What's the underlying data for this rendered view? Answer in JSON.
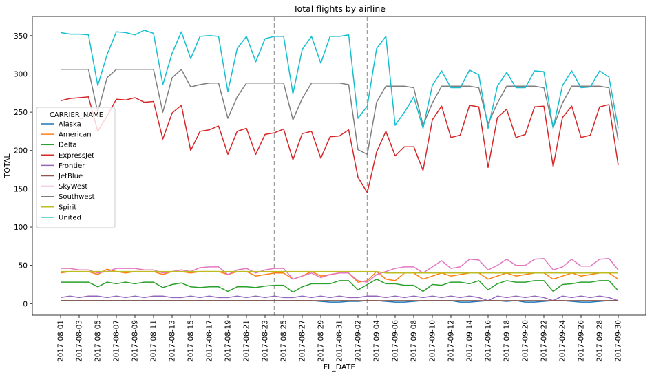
{
  "chart_data": {
    "type": "line",
    "title": "Total flights by airline",
    "xlabel": "FL_DATE",
    "ylabel": "TOTAL",
    "ylim": [
      -15,
      375
    ],
    "yticks": [
      0,
      50,
      100,
      150,
      200,
      250,
      300,
      350
    ],
    "grid": false,
    "legend": {
      "title": "CARRIER_NAME",
      "placement": "center-left"
    },
    "vlines": [
      "2017-08-24",
      "2017-09-03"
    ],
    "start_date": "2017-08-01",
    "categories": [
      "2017-08-01",
      "2017-08-02",
      "2017-08-03",
      "2017-08-04",
      "2017-08-05",
      "2017-08-06",
      "2017-08-07",
      "2017-08-08",
      "2017-08-09",
      "2017-08-10",
      "2017-08-11",
      "2017-08-12",
      "2017-08-13",
      "2017-08-14",
      "2017-08-15",
      "2017-08-16",
      "2017-08-17",
      "2017-08-18",
      "2017-08-19",
      "2017-08-20",
      "2017-08-21",
      "2017-08-22",
      "2017-08-23",
      "2017-08-24",
      "2017-08-25",
      "2017-08-26",
      "2017-08-27",
      "2017-08-28",
      "2017-08-29",
      "2017-08-30",
      "2017-08-31",
      "2017-09-01",
      "2017-09-02",
      "2017-09-03",
      "2017-09-04",
      "2017-09-05",
      "2017-09-06",
      "2017-09-07",
      "2017-09-08",
      "2017-09-09",
      "2017-09-10",
      "2017-09-11",
      "2017-09-12",
      "2017-09-13",
      "2017-09-14",
      "2017-09-15",
      "2017-09-16",
      "2017-09-17",
      "2017-09-18",
      "2017-09-19",
      "2017-09-20",
      "2017-09-21",
      "2017-09-22",
      "2017-09-23",
      "2017-09-24",
      "2017-09-25",
      "2017-09-26",
      "2017-09-27",
      "2017-09-28",
      "2017-09-29",
      "2017-09-30"
    ],
    "series": [
      {
        "name": "Alaska",
        "color": "#1f77b4",
        "values": [
          4,
          4,
          4,
          4,
          4,
          4,
          4,
          4,
          4,
          4,
          4,
          4,
          4,
          4,
          4,
          4,
          4,
          4,
          4,
          4,
          4,
          4,
          4,
          4,
          4,
          4,
          4,
          4,
          3,
          2,
          2,
          3,
          3,
          4,
          4,
          3,
          2,
          2,
          3,
          4,
          4,
          4,
          4,
          2,
          2,
          3,
          4,
          4,
          3,
          4,
          2,
          2,
          3,
          4,
          4,
          3,
          2,
          2,
          3,
          4,
          4
        ]
      },
      {
        "name": "American",
        "color": "#ff7f0e",
        "values": [
          40,
          42,
          42,
          42,
          38,
          45,
          42,
          40,
          42,
          42,
          42,
          38,
          42,
          42,
          40,
          42,
          42,
          42,
          38,
          42,
          42,
          36,
          38,
          40,
          40,
          32,
          36,
          42,
          36,
          38,
          40,
          40,
          28,
          30,
          42,
          32,
          30,
          40,
          40,
          32,
          36,
          40,
          36,
          38,
          40,
          40,
          32,
          36,
          40,
          36,
          38,
          40,
          40,
          32,
          36,
          40,
          36,
          38,
          40,
          40,
          32
        ]
      },
      {
        "name": "Delta",
        "color": "#2ca02c",
        "values": [
          28,
          28,
          28,
          28,
          22,
          28,
          26,
          28,
          26,
          28,
          28,
          21,
          25,
          27,
          22,
          21,
          22,
          22,
          16,
          22,
          22,
          21,
          23,
          24,
          24,
          15,
          22,
          26,
          26,
          26,
          30,
          30,
          18,
          25,
          32,
          26,
          26,
          24,
          24,
          16,
          25,
          24,
          28,
          28,
          26,
          30,
          18,
          26,
          30,
          28,
          28,
          30,
          30,
          16,
          25,
          26,
          28,
          28,
          30,
          30,
          17
        ]
      },
      {
        "name": "ExpressJet",
        "color": "#d62728",
        "values": [
          265,
          268,
          269,
          270,
          225,
          245,
          267,
          266,
          269,
          263,
          264,
          215,
          249,
          259,
          200,
          225,
          227,
          232,
          195,
          225,
          229,
          195,
          221,
          223,
          228,
          188,
          222,
          225,
          190,
          218,
          219,
          227,
          165,
          145,
          198,
          225,
          193,
          205,
          205,
          174,
          240,
          258,
          217,
          220,
          259,
          257,
          178,
          243,
          254,
          217,
          221,
          257,
          258,
          179,
          243,
          258,
          217,
          220,
          257,
          260,
          181
        ]
      },
      {
        "name": "Frontier",
        "color": "#9467bd",
        "values": [
          8,
          10,
          8,
          10,
          10,
          8,
          10,
          8,
          10,
          8,
          10,
          10,
          8,
          8,
          10,
          8,
          10,
          8,
          8,
          10,
          8,
          10,
          8,
          10,
          8,
          8,
          10,
          8,
          10,
          8,
          10,
          8,
          8,
          10,
          10,
          8,
          10,
          8,
          10,
          8,
          10,
          8,
          10,
          8,
          10,
          8,
          4,
          10,
          8,
          10,
          8,
          10,
          8,
          4,
          10,
          8,
          10,
          8,
          10,
          8,
          4
        ]
      },
      {
        "name": "JetBlue",
        "color": "#8c564b",
        "values": [
          4,
          4,
          4,
          4,
          4,
          4,
          4,
          4,
          4,
          4,
          4,
          4,
          4,
          4,
          4,
          4,
          4,
          4,
          4,
          4,
          4,
          4,
          4,
          4,
          4,
          4,
          4,
          4,
          4,
          4,
          4,
          4,
          4,
          4,
          4,
          4,
          4,
          4,
          4,
          4,
          4,
          4,
          4,
          4,
          4,
          4,
          4,
          4,
          4,
          4,
          4,
          4,
          4,
          4,
          4,
          4,
          4,
          4,
          4,
          4,
          4
        ]
      },
      {
        "name": "SkyWest",
        "color": "#e377c2",
        "values": [
          46,
          46,
          44,
          44,
          40,
          42,
          46,
          46,
          46,
          44,
          44,
          40,
          42,
          44,
          42,
          47,
          48,
          48,
          38,
          44,
          46,
          40,
          44,
          46,
          46,
          32,
          36,
          40,
          34,
          38,
          40,
          40,
          30,
          28,
          38,
          42,
          46,
          48,
          48,
          40,
          48,
          56,
          46,
          48,
          58,
          57,
          44,
          50,
          58,
          50,
          50,
          58,
          59,
          44,
          48,
          58,
          49,
          49,
          58,
          59,
          44
        ]
      },
      {
        "name": "Southwest",
        "color": "#7f7f7f",
        "values": [
          306,
          306,
          306,
          306,
          250,
          295,
          306,
          306,
          306,
          306,
          306,
          250,
          295,
          306,
          283,
          286,
          288,
          288,
          242,
          270,
          288,
          288,
          288,
          288,
          288,
          240,
          268,
          288,
          288,
          288,
          288,
          286,
          201,
          195,
          263,
          284,
          284,
          284,
          282,
          233,
          262,
          284,
          284,
          284,
          284,
          282,
          235,
          262,
          284,
          284,
          284,
          284,
          282,
          230,
          262,
          284,
          284,
          284,
          284,
          282,
          213
        ]
      },
      {
        "name": "Spirit",
        "color": "#bcbd22",
        "values": [
          42,
          42,
          42,
          42,
          42,
          42,
          42,
          42,
          42,
          42,
          42,
          42,
          42,
          42,
          42,
          42,
          42,
          42,
          42,
          42,
          42,
          42,
          42,
          42,
          42,
          42,
          42,
          42,
          42,
          42,
          42,
          42,
          42,
          42,
          42,
          40,
          40,
          40,
          40,
          40,
          40,
          40,
          40,
          40,
          40,
          40,
          40,
          40,
          40,
          40,
          40,
          40,
          40,
          40,
          40,
          40,
          40,
          40,
          40,
          40,
          40
        ]
      },
      {
        "name": "United",
        "color": "#17becf",
        "values": [
          354,
          352,
          352,
          351,
          285,
          325,
          355,
          354,
          351,
          357,
          353,
          286,
          327,
          355,
          320,
          349,
          350,
          349,
          277,
          333,
          349,
          316,
          346,
          349,
          349,
          274,
          332,
          349,
          314,
          349,
          349,
          351,
          242,
          258,
          333,
          349,
          233,
          250,
          270,
          229,
          285,
          304,
          282,
          282,
          305,
          299,
          229,
          284,
          302,
          282,
          282,
          304,
          303,
          229,
          285,
          304,
          282,
          283,
          304,
          296,
          229
        ]
      }
    ]
  }
}
